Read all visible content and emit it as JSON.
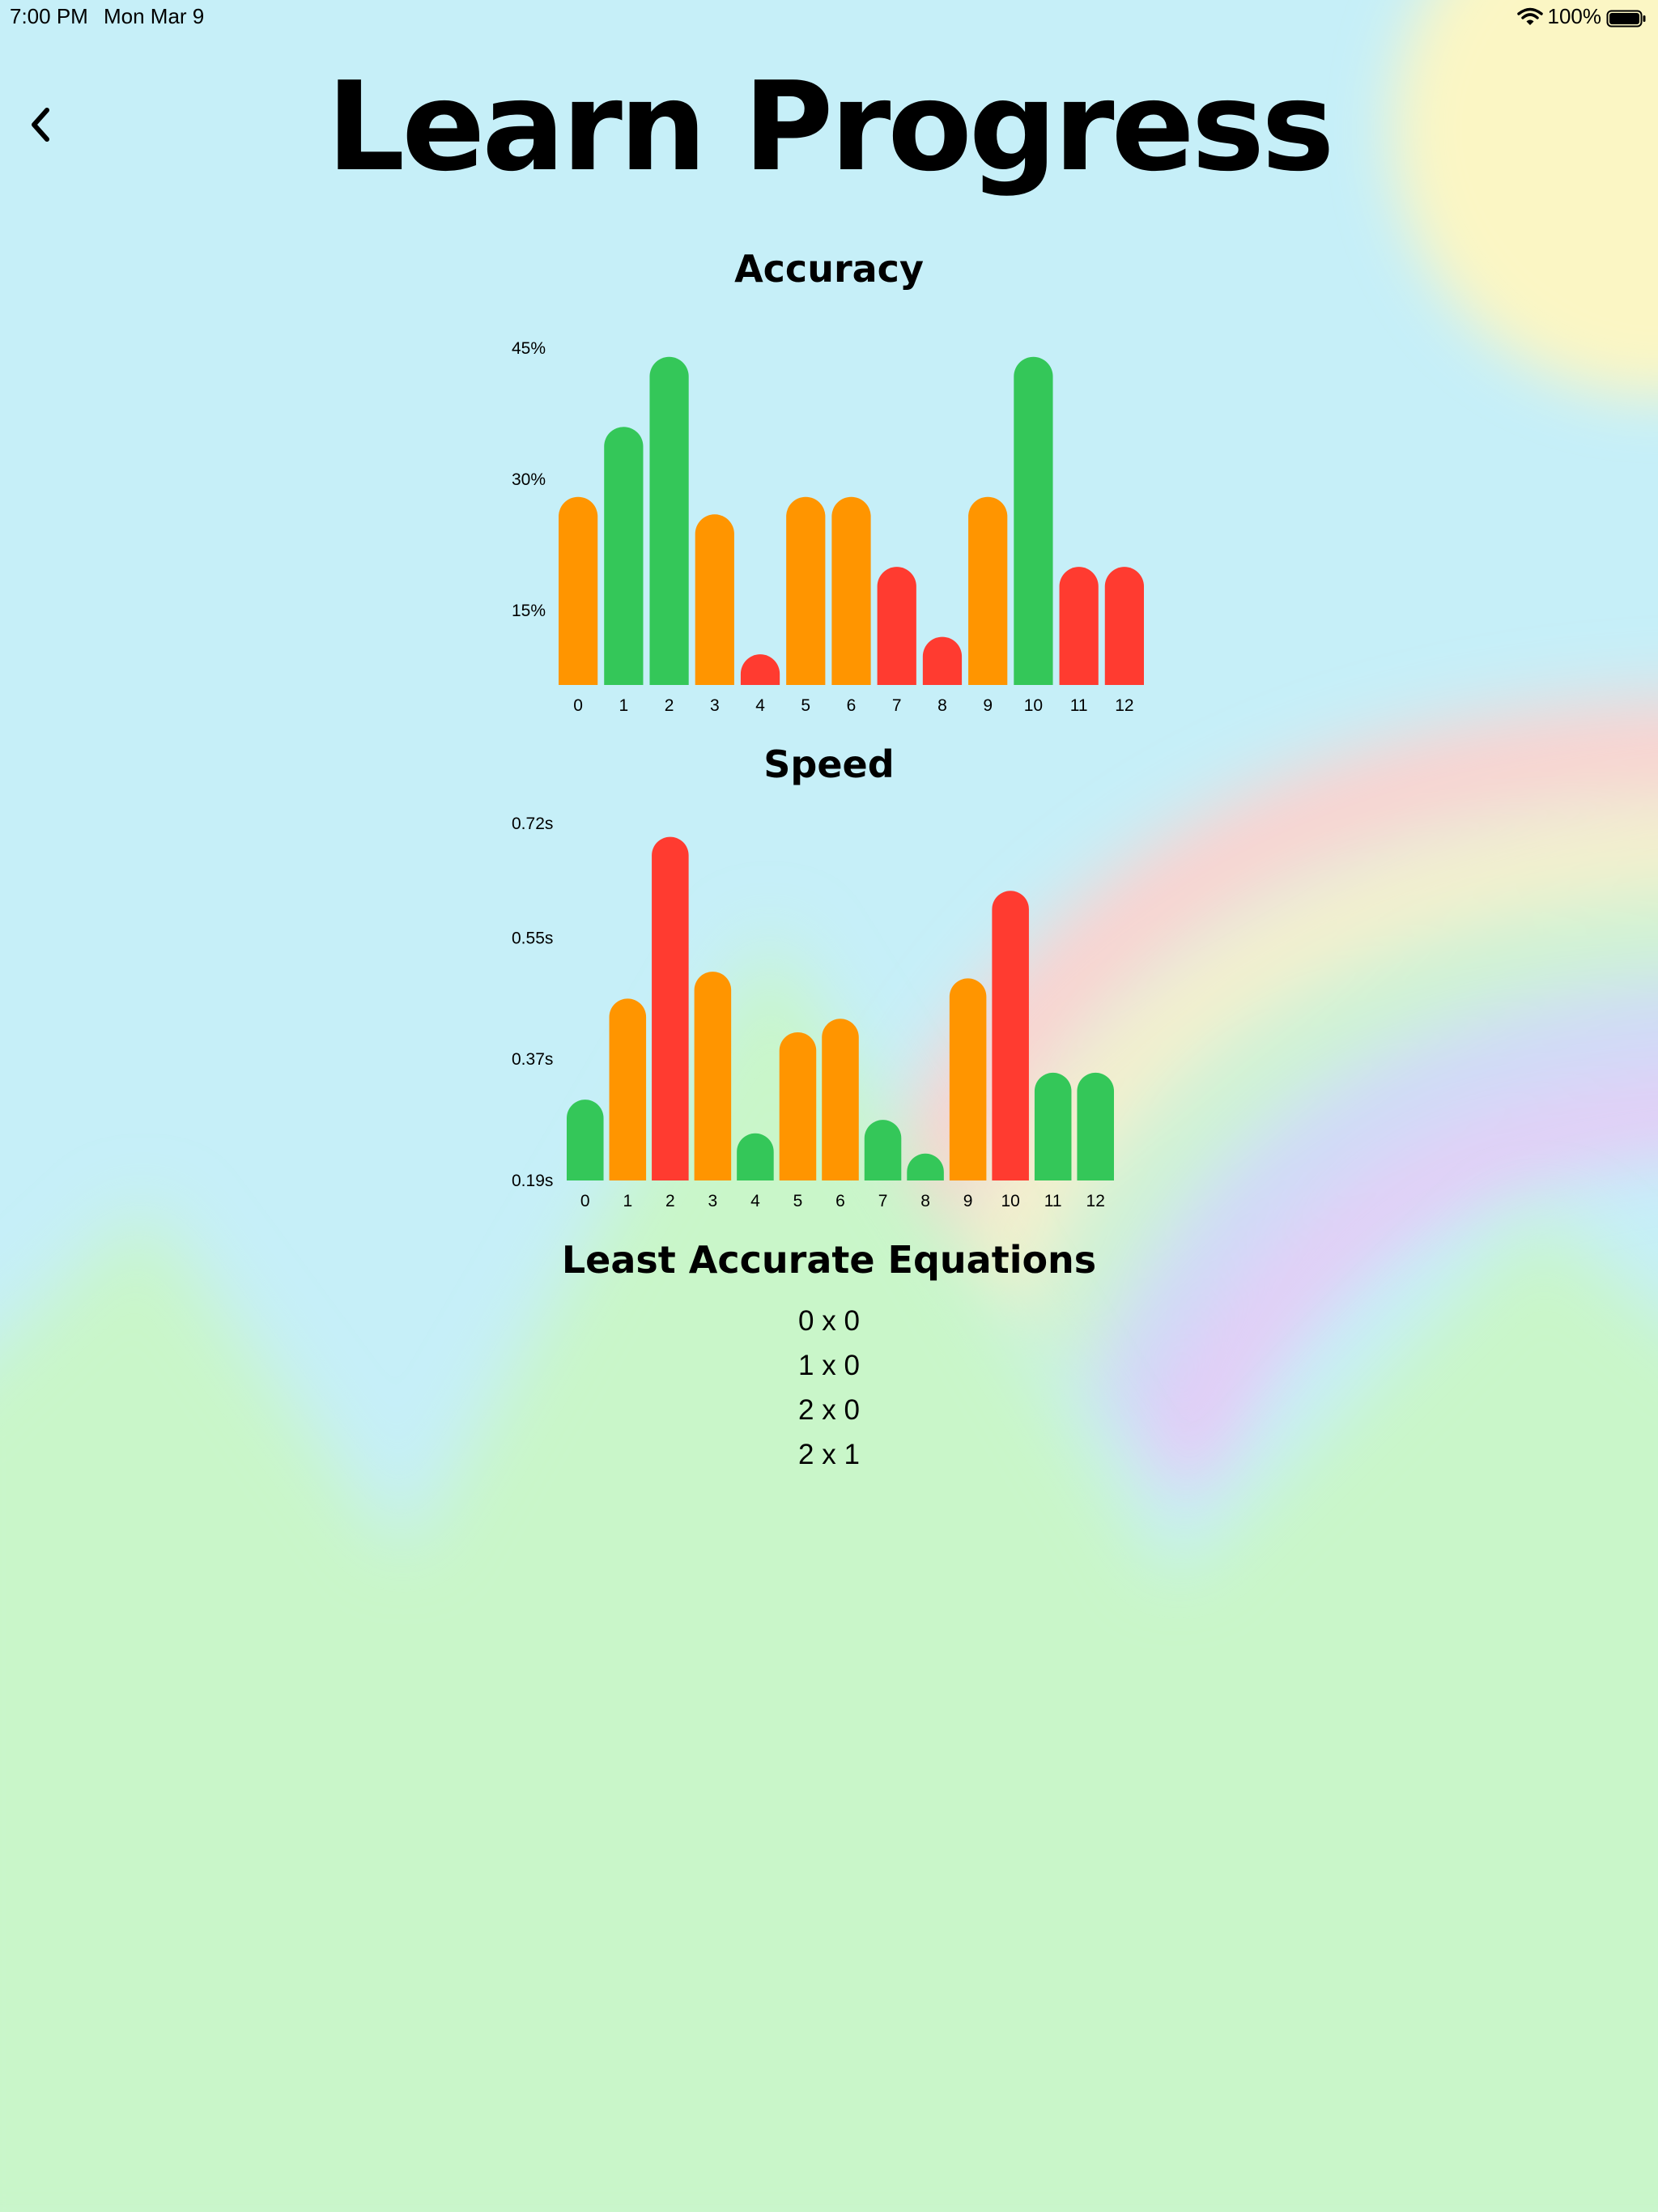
{
  "status_bar": {
    "time": "7:00 PM",
    "date": "Mon Mar 9",
    "battery": "100%",
    "wifi_icon": "wifi-icon",
    "battery_icon": "battery-full-icon"
  },
  "header": {
    "back_icon": "chevron-left-icon",
    "title": "Learn Progress"
  },
  "colors": {
    "green": "#34c759",
    "orange": "#ff9500",
    "red": "#ff3b30",
    "sky": "#c6eff8",
    "hills": "#c9f6c9",
    "sun": "#fbf6c4"
  },
  "accuracy": {
    "title": "Accuracy"
  },
  "speed": {
    "title": "Speed"
  },
  "equations": {
    "title": "Least Accurate Equations",
    "items": [
      "0 x 0",
      "1 x 0",
      "2 x 0",
      "2 x 1"
    ]
  },
  "chart_data": [
    {
      "type": "bar",
      "title": "Accuracy",
      "categories": [
        "0",
        "1",
        "2",
        "3",
        "4",
        "5",
        "6",
        "7",
        "8",
        "9",
        "10",
        "11",
        "12"
      ],
      "values": [
        28,
        36,
        44,
        26,
        10,
        28,
        28,
        20,
        12,
        28,
        44,
        20,
        20
      ],
      "value_colors": [
        "orange",
        "green",
        "green",
        "orange",
        "red",
        "orange",
        "orange",
        "red",
        "red",
        "orange",
        "green",
        "red",
        "red"
      ],
      "yticks": [
        "15%",
        "30%",
        "45%"
      ],
      "ytick_values": [
        15,
        30,
        45
      ],
      "ylim": [
        6.5,
        45
      ]
    },
    {
      "type": "bar",
      "title": "Speed",
      "categories": [
        "0",
        "1",
        "2",
        "3",
        "4",
        "5",
        "6",
        "7",
        "8",
        "9",
        "10",
        "11",
        "12"
      ],
      "values": [
        0.31,
        0.46,
        0.7,
        0.5,
        0.26,
        0.41,
        0.43,
        0.28,
        0.23,
        0.49,
        0.62,
        0.35,
        0.35
      ],
      "value_colors": [
        "green",
        "orange",
        "red",
        "orange",
        "green",
        "orange",
        "orange",
        "green",
        "green",
        "orange",
        "red",
        "green",
        "green"
      ],
      "yticks": [
        "0.19s",
        "0.37s",
        "0.55s",
        "0.72s"
      ],
      "ytick_values": [
        0.19,
        0.37,
        0.55,
        0.72
      ],
      "ylim": [
        0.19,
        0.72
      ]
    }
  ]
}
